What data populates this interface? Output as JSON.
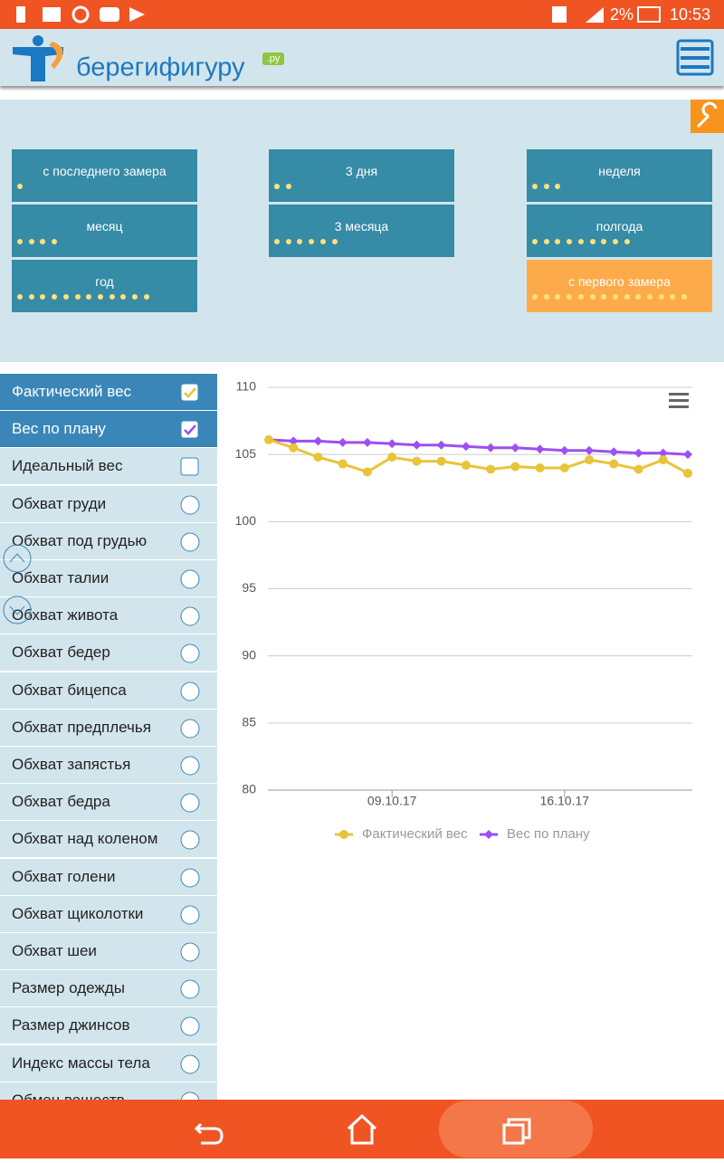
{
  "status_bar": {
    "battery": "2%",
    "time": "10:53"
  },
  "header": {
    "logo": "берегифигуру",
    "logo_suffix": ".ру"
  },
  "periods": [
    {
      "label": "с последнего замера",
      "dots": 1,
      "active": false
    },
    {
      "label": "3 дня",
      "dots": 2,
      "active": false
    },
    {
      "label": "неделя",
      "dots": 3,
      "active": false
    },
    {
      "label": "месяц",
      "dots": 4,
      "active": false
    },
    {
      "label": "3 месяца",
      "dots": 6,
      "active": false
    },
    {
      "label": "полгода",
      "dots": 9,
      "active": false
    },
    {
      "label": "год",
      "dots": 12,
      "active": false
    },
    {
      "label": "с первого замера",
      "dots": 14,
      "active": true
    }
  ],
  "measures": [
    {
      "label": "Фактический вес",
      "control": "checkbox",
      "checked": true
    },
    {
      "label": "Вес по плану",
      "control": "checkbox",
      "checked": true
    },
    {
      "label": "Идеальный вес",
      "control": "checkbox",
      "checked": false
    },
    {
      "label": "Обхват груди",
      "control": "radio",
      "checked": false
    },
    {
      "label": "Обхват под грудью",
      "control": "radio",
      "checked": false
    },
    {
      "label": "Обхват талии",
      "control": "radio",
      "checked": false
    },
    {
      "label": "Обхват живота",
      "control": "radio",
      "checked": false
    },
    {
      "label": "Обхват бедер",
      "control": "radio",
      "checked": false
    },
    {
      "label": "Обхват бицепса",
      "control": "radio",
      "checked": false
    },
    {
      "label": "Обхват предплечья",
      "control": "radio",
      "checked": false
    },
    {
      "label": "Обхват запястья",
      "control": "radio",
      "checked": false
    },
    {
      "label": "Обхват бедра",
      "control": "radio",
      "checked": false
    },
    {
      "label": "Обхват над коленом",
      "control": "radio",
      "checked": false
    },
    {
      "label": "Обхват голени",
      "control": "radio",
      "checked": false
    },
    {
      "label": "Обхват щиколотки",
      "control": "radio",
      "checked": false
    },
    {
      "label": "Обхват шеи",
      "control": "radio",
      "checked": false
    },
    {
      "label": "Размер одежды",
      "control": "radio",
      "checked": false
    },
    {
      "label": "Размер джинсов",
      "control": "radio",
      "checked": false
    },
    {
      "label": "Индекс массы тела",
      "control": "radio",
      "checked": false
    },
    {
      "label": "Обмен веществ",
      "control": "radio",
      "checked": false
    }
  ],
  "chart_data": {
    "type": "line",
    "x": [
      "04.10.17",
      "05.10.17",
      "06.10.17",
      "07.10.17",
      "08.10.17",
      "09.10.17",
      "10.10.17",
      "11.10.17",
      "12.10.17",
      "13.10.17",
      "14.10.17",
      "15.10.17",
      "16.10.17",
      "17.10.17",
      "18.10.17",
      "19.10.17",
      "20.10.17",
      "21.10.17"
    ],
    "xticks": [
      "09.10.17",
      "16.10.17"
    ],
    "series": [
      {
        "name": "Фактический вес",
        "color": "#e8c43a",
        "marker": "circle",
        "values": [
          106.1,
          105.5,
          104.8,
          104.3,
          103.7,
          104.8,
          104.5,
          104.5,
          104.2,
          103.9,
          104.1,
          104.0,
          104.0,
          104.6,
          104.3,
          103.9,
          104.6,
          103.6
        ]
      },
      {
        "name": "Вес по плану",
        "color": "#9d4ff2",
        "marker": "diamond",
        "values": [
          106.1,
          106.0,
          106.0,
          105.9,
          105.9,
          105.8,
          105.7,
          105.7,
          105.6,
          105.5,
          105.5,
          105.4,
          105.3,
          105.3,
          105.2,
          105.1,
          105.1,
          105.0
        ]
      }
    ],
    "ylim": [
      80,
      110
    ],
    "yticks": [
      80,
      85,
      90,
      95,
      100,
      105,
      110
    ],
    "grid": true,
    "legend": "bottom"
  }
}
